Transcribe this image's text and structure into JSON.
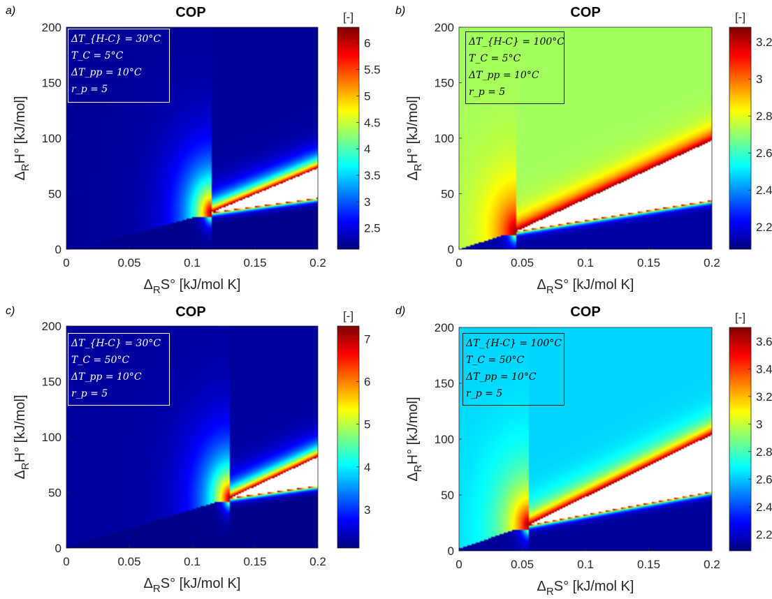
{
  "chart_data": [
    {
      "panel_label": "a)",
      "type": "heatmap",
      "title": "COP",
      "xlabel": "ΔRS° [kJ/mol K]",
      "ylabel": "ΔRH° [kJ/mol]",
      "xlim": [
        0,
        0.2
      ],
      "ylim": [
        0,
        200
      ],
      "xticks": [
        "0",
        "0.05",
        "0.1",
        "0.15",
        "0.2"
      ],
      "yticks": [
        "0",
        "50",
        "100",
        "150",
        "200"
      ],
      "colorbar": {
        "label": "[-]",
        "range": [
          2.1,
          6.3
        ],
        "ticks": [
          "2.5",
          "3",
          "3.5",
          "4",
          "4.5",
          "5",
          "5.5",
          "6"
        ],
        "colormap": "jet"
      },
      "background_value": 2.2,
      "below_value": 2.15,
      "undefined_region": {
        "tip": [
          0.115,
          33
        ],
        "upper_edge_at_x_max": 73,
        "lower_edge_at_x_max": 46,
        "color": "#ffffff"
      },
      "annotation": [
        "ΔT_{H-C} = 30°C",
        "T_C = 5°C",
        "ΔT_pp = 10°C",
        "r_p = 5"
      ],
      "annotation_style": "light"
    },
    {
      "panel_label": "b)",
      "type": "heatmap",
      "title": "COP",
      "xlabel": "ΔRS° [kJ/mol K]",
      "ylabel": "ΔRH° [kJ/mol]",
      "xlim": [
        0,
        0.2
      ],
      "ylim": [
        0,
        200
      ],
      "xticks": [
        "0",
        "0.05",
        "0.1",
        "0.15",
        "0.2"
      ],
      "yticks": [
        "0",
        "50",
        "100",
        "150",
        "200"
      ],
      "colorbar": {
        "label": "[-]",
        "range": [
          2.08,
          3.28
        ],
        "ticks": [
          "2.2",
          "2.4",
          "2.6",
          "2.8",
          "3",
          "3.2"
        ],
        "colormap": "jet"
      },
      "background_value": 2.72,
      "below_value": 2.12,
      "undefined_region": {
        "tip": [
          0.045,
          16
        ],
        "upper_edge_at_x_max": 98,
        "lower_edge_at_x_max": 44,
        "color": "#ffffff"
      },
      "annotation": [
        "ΔT_{H-C} = 100°C",
        "T_C = 5°C",
        "ΔT_pp = 10°C",
        "r_p = 5"
      ],
      "annotation_style": "dark"
    },
    {
      "panel_label": "c)",
      "type": "heatmap",
      "title": "COP",
      "xlabel": "ΔRS° [kJ/mol K]",
      "ylabel": "ΔRH° [kJ/mol]",
      "xlim": [
        0,
        0.2
      ],
      "ylim": [
        0,
        200
      ],
      "xticks": [
        "0",
        "0.05",
        "0.1",
        "0.15",
        "0.2"
      ],
      "yticks": [
        "0",
        "50",
        "100",
        "150",
        "200"
      ],
      "colorbar": {
        "label": "[-]",
        "range": [
          2.1,
          7.3
        ],
        "ticks": [
          "3",
          "4",
          "5",
          "6",
          "7"
        ],
        "colormap": "jet"
      },
      "background_value": 2.25,
      "below_value": 2.15,
      "undefined_region": {
        "tip": [
          0.13,
          45
        ],
        "upper_edge_at_x_max": 82,
        "lower_edge_at_x_max": 56,
        "color": "#ffffff"
      },
      "annotation": [
        "ΔT_{H-C} = 30°C",
        "T_C = 50°C",
        "ΔT_pp = 10°C",
        "r_p = 5"
      ],
      "annotation_style": "light"
    },
    {
      "panel_label": "d)",
      "type": "heatmap",
      "title": "COP",
      "xlabel": "ΔRS° [kJ/mol K]",
      "ylabel": "ΔRH° [kJ/mol]",
      "xlim": [
        0,
        0.2
      ],
      "ylim": [
        0,
        200
      ],
      "xticks": [
        "0",
        "0.05",
        "0.1",
        "0.15",
        "0.2"
      ],
      "yticks": [
        "0",
        "50",
        "100",
        "150",
        "200"
      ],
      "colorbar": {
        "label": "[-]",
        "range": [
          2.08,
          3.7
        ],
        "ticks": [
          "2.2",
          "2.4",
          "2.6",
          "2.8",
          "3",
          "3.2",
          "3.4",
          "3.6"
        ],
        "colormap": "jet"
      },
      "background_value": 2.62,
      "below_value": 2.12,
      "undefined_region": {
        "tip": [
          0.055,
          23
        ],
        "upper_edge_at_x_max": 104,
        "lower_edge_at_x_max": 53,
        "color": "#ffffff"
      },
      "annotation": [
        "ΔT_{H-C} = 100°C",
        "T_C = 50°C",
        "ΔT_pp = 10°C",
        "r_p = 5"
      ],
      "annotation_style": "dark"
    }
  ]
}
